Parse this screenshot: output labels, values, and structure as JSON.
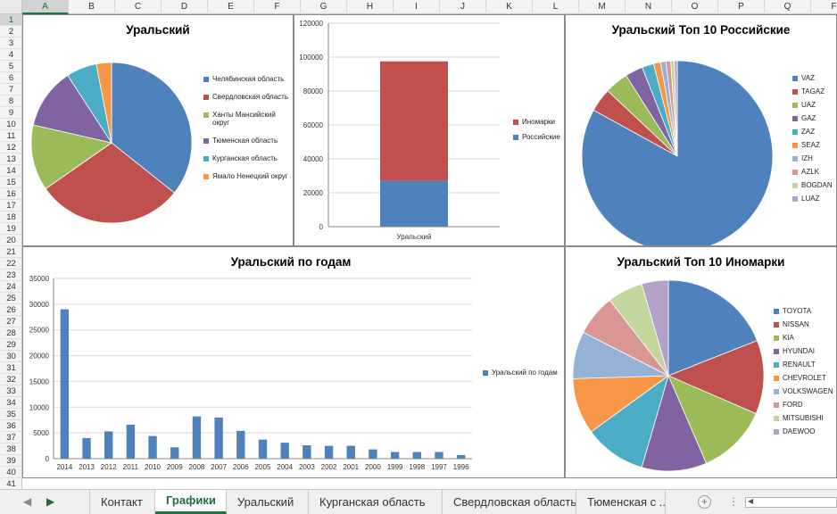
{
  "columns": [
    "A",
    "B",
    "C",
    "D",
    "E",
    "F",
    "G",
    "H",
    "I",
    "J",
    "K",
    "L",
    "M",
    "N",
    "O",
    "P",
    "Q",
    "F"
  ],
  "rows": [
    "1",
    "2",
    "3",
    "4",
    "5",
    "6",
    "7",
    "8",
    "9",
    "10",
    "11",
    "12",
    "13",
    "14",
    "15",
    "16",
    "17",
    "18",
    "19",
    "20",
    "21",
    "22",
    "23",
    "24",
    "25",
    "26",
    "27",
    "28",
    "29",
    "30",
    "31",
    "32",
    "33",
    "34",
    "35",
    "36",
    "37",
    "38",
    "39",
    "40",
    "41"
  ],
  "sheet_tabs": [
    "Контакт",
    "Графики",
    "Уральский",
    "Курганская область",
    "Свердловская область",
    "Тюменская с ..."
  ],
  "active_tab": "Графики",
  "nav": {
    "prev": "◀",
    "next": "▶",
    "add": "+",
    "more": "⋮",
    "scroll_left": "◀"
  },
  "chart_data": [
    {
      "id": "pie_regions",
      "type": "pie",
      "title": "Уральский",
      "labels": [
        "Челябинская область",
        "Свердловская область",
        "Ханты Мансийский округ",
        "Тюменская область",
        "Курганская область",
        "Ямало Ненецкий округ"
      ],
      "values": [
        35,
        29,
        13,
        12,
        6,
        3
      ],
      "colors": [
        "#4f81bd",
        "#c0504d",
        "#9bbb59",
        "#8064a2",
        "#4bacc6",
        "#f79646"
      ],
      "legend_position": "right"
    },
    {
      "id": "stacked_bar",
      "type": "bar",
      "title": "",
      "categories": [
        "Уральский"
      ],
      "series": [
        {
          "name": "Российские",
          "values": [
            27000
          ],
          "color": "#4f81bd"
        },
        {
          "name": "Иномарки",
          "values": [
            70500
          ],
          "color": "#c0504d"
        }
      ],
      "ylim": [
        0,
        120000
      ],
      "yticks": [
        0,
        20000,
        40000,
        60000,
        80000,
        100000,
        120000
      ],
      "stacked": true,
      "grid": true,
      "legend_position": "right"
    },
    {
      "id": "pie_russian",
      "type": "pie",
      "title": "Уральский Топ 10 Российские",
      "labels": [
        "VAZ",
        "TAGAZ",
        "UAZ",
        "GAZ",
        "ZAZ",
        "SEAZ",
        "IZH",
        "AZLK",
        "BOGDAN",
        "LUAZ"
      ],
      "values": [
        83,
        4,
        4,
        3,
        2,
        1.2,
        0.9,
        0.8,
        0.6,
        0.5
      ],
      "colors": [
        "#4f81bd",
        "#c0504d",
        "#9bbb59",
        "#8064a2",
        "#4bacc6",
        "#f79646",
        "#95b3d7",
        "#d99694",
        "#c3d69b",
        "#b3a2c7"
      ],
      "legend_position": "right"
    },
    {
      "id": "bar_years",
      "type": "bar",
      "title": "Уральский по годам",
      "categories": [
        "2014",
        "2013",
        "2012",
        "2011",
        "2010",
        "2009",
        "2008",
        "2007",
        "2006",
        "2005",
        "2004",
        "2003",
        "2002",
        "2001",
        "2000",
        "1999",
        "1998",
        "1997",
        "1996"
      ],
      "series": [
        {
          "name": "Уральский по годам",
          "values": [
            29000,
            4000,
            5300,
            6600,
            4400,
            2200,
            8200,
            8000,
            5400,
            3700,
            3100,
            2600,
            2500,
            2500,
            1800,
            1300,
            1300,
            1300,
            700
          ],
          "color": "#4f81bd"
        }
      ],
      "ylim": [
        0,
        35000
      ],
      "yticks": [
        0,
        5000,
        10000,
        15000,
        20000,
        25000,
        30000,
        35000
      ],
      "grid": true,
      "legend_position": "right"
    },
    {
      "id": "pie_foreign",
      "type": "pie",
      "title": "Уральский Топ 10 Иномарки",
      "labels": [
        "TOYOTA",
        "NISSAN",
        "KIA",
        "HYUNDAI",
        "RENAULT",
        "CHEVROLET",
        "VOLKSWAGEN",
        "FORD",
        "MITSUBISHI",
        "DAEWOO"
      ],
      "values": [
        19,
        12.5,
        12,
        11,
        10.5,
        9.5,
        8,
        7,
        6,
        4.5
      ],
      "colors": [
        "#4f81bd",
        "#c0504d",
        "#9bbb59",
        "#8064a2",
        "#4bacc6",
        "#f79646",
        "#95b3d7",
        "#d99694",
        "#c3d69b",
        "#b3a2c7"
      ],
      "legend_position": "right"
    }
  ]
}
